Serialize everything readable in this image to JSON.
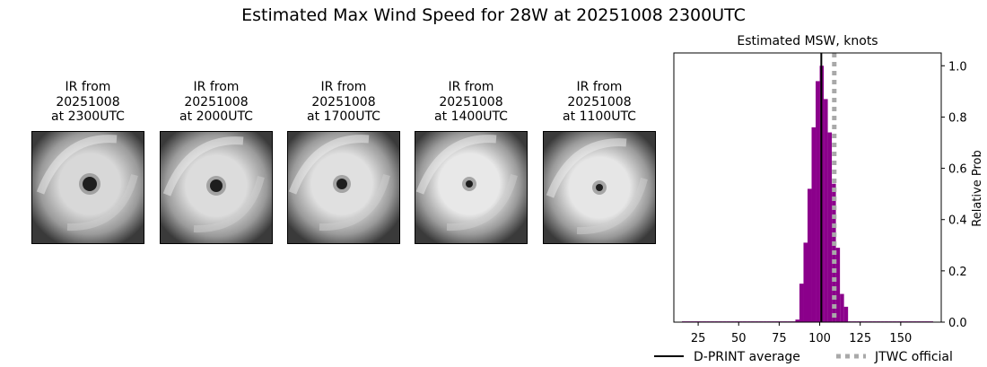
{
  "title": "Estimated Max Wind Speed for 28W at 20251008 2300UTC",
  "panels": [
    {
      "title": "IR from\n20251008\nat 2300UTC",
      "image": "ir-satellite-typhoon-28w-2300utc"
    },
    {
      "title": "IR from\n20251008\nat 2000UTC",
      "image": "ir-satellite-typhoon-28w-2000utc"
    },
    {
      "title": "IR from\n20251008\nat 1700UTC",
      "image": "ir-satellite-typhoon-28w-1700utc"
    },
    {
      "title": "IR from\n20251008\nat 1400UTC",
      "image": "ir-satellite-typhoon-28w-1400utc"
    },
    {
      "title": "IR from\n20251008\nat 1100UTC",
      "image": "ir-satellite-typhoon-28w-1100utc"
    }
  ],
  "chart_data": {
    "type": "bar",
    "title": "Estimated MSW, knots",
    "xlabel": "",
    "ylabel": "Relative Prob",
    "xlim": [
      10,
      175
    ],
    "ylim": [
      0,
      1.05
    ],
    "xticks": [
      25,
      50,
      75,
      100,
      125,
      150
    ],
    "yticks": [
      0.0,
      0.2,
      0.4,
      0.6,
      0.8,
      1.0
    ],
    "y_axis_side": "right",
    "bin_width": 2.5,
    "bar_color": "#8b008b",
    "x": [
      15,
      17.5,
      20,
      22.5,
      25,
      27.5,
      30,
      32.5,
      35,
      37.5,
      40,
      42.5,
      45,
      47.5,
      50,
      52.5,
      55,
      57.5,
      60,
      62.5,
      65,
      67.5,
      70,
      72.5,
      75,
      77.5,
      80,
      82.5,
      85,
      87.5,
      90,
      92.5,
      95,
      97.5,
      100,
      102.5,
      105,
      107.5,
      110,
      112.5,
      115,
      117.5,
      120,
      122.5,
      125,
      127.5,
      130,
      132.5,
      135,
      137.5,
      140,
      142.5,
      145,
      147.5,
      150,
      152.5,
      155,
      157.5,
      160,
      162.5,
      165,
      167.5
    ],
    "values": [
      0.003,
      0.003,
      0.003,
      0.003,
      0.003,
      0.003,
      0.003,
      0.003,
      0.003,
      0.003,
      0.003,
      0.003,
      0.003,
      0.003,
      0.003,
      0.003,
      0.003,
      0.003,
      0.003,
      0.003,
      0.003,
      0.003,
      0.003,
      0.003,
      0.003,
      0.003,
      0.003,
      0.003,
      0.01,
      0.15,
      0.31,
      0.52,
      0.76,
      0.94,
      1.0,
      0.87,
      0.74,
      0.54,
      0.29,
      0.11,
      0.06,
      0.003,
      0.003,
      0.003,
      0.003,
      0.003,
      0.003,
      0.003,
      0.003,
      0.003,
      0.003,
      0.003,
      0.003,
      0.003,
      0.003,
      0.003,
      0.003,
      0.003,
      0.003,
      0.003,
      0.003,
      0.003
    ],
    "reference_lines": [
      {
        "name": "D-PRINT average",
        "x": 101,
        "color": "#000000",
        "style": "solid"
      },
      {
        "name": "JTWC official",
        "x": 109,
        "color": "#a9a9a9",
        "style": "dotted"
      }
    ],
    "legend_placement": "bottom"
  }
}
